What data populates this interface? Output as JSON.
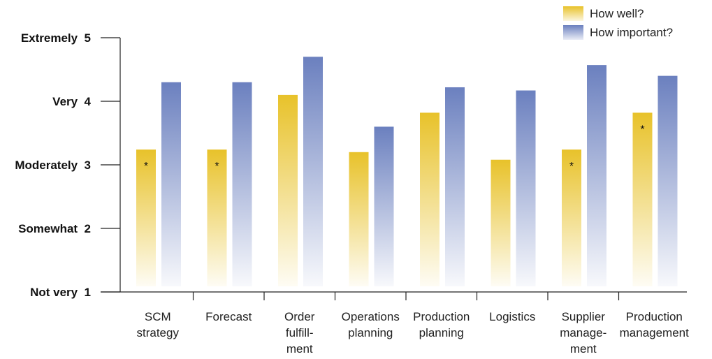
{
  "chart_data": {
    "type": "bar",
    "title": "",
    "xlabel": "",
    "ylabel": "",
    "ylim": [
      1,
      5
    ],
    "grid": false,
    "legend_position": "top-right",
    "y_ticks": [
      {
        "value": 1,
        "label": "Not very  1"
      },
      {
        "value": 2,
        "label": "Somewhat  2"
      },
      {
        "value": 3,
        "label": "Moderately  3"
      },
      {
        "value": 4,
        "label": "Very  4"
      },
      {
        "value": 5,
        "label": "Extremely  5"
      }
    ],
    "categories": [
      [
        "SCM",
        "strategy"
      ],
      [
        "Forecast"
      ],
      [
        "Order",
        "fulfill-",
        "ment"
      ],
      [
        "Operations",
        "planning"
      ],
      [
        "Production",
        "planning"
      ],
      [
        "Logistics"
      ],
      [
        "Supplier",
        "manage-",
        "ment"
      ],
      [
        "Production",
        "management"
      ]
    ],
    "series": [
      {
        "name": "How well?",
        "color": "#e8c22a",
        "values": [
          3.24,
          3.24,
          4.1,
          3.2,
          3.82,
          3.08,
          3.24,
          3.82
        ],
        "markers": [
          "*",
          "*",
          "",
          "",
          "",
          "",
          "*",
          "*"
        ]
      },
      {
        "name": "How important?",
        "color": "#6b80bf",
        "values": [
          4.3,
          4.3,
          4.7,
          3.6,
          4.22,
          4.17,
          4.57,
          4.4
        ]
      }
    ]
  }
}
